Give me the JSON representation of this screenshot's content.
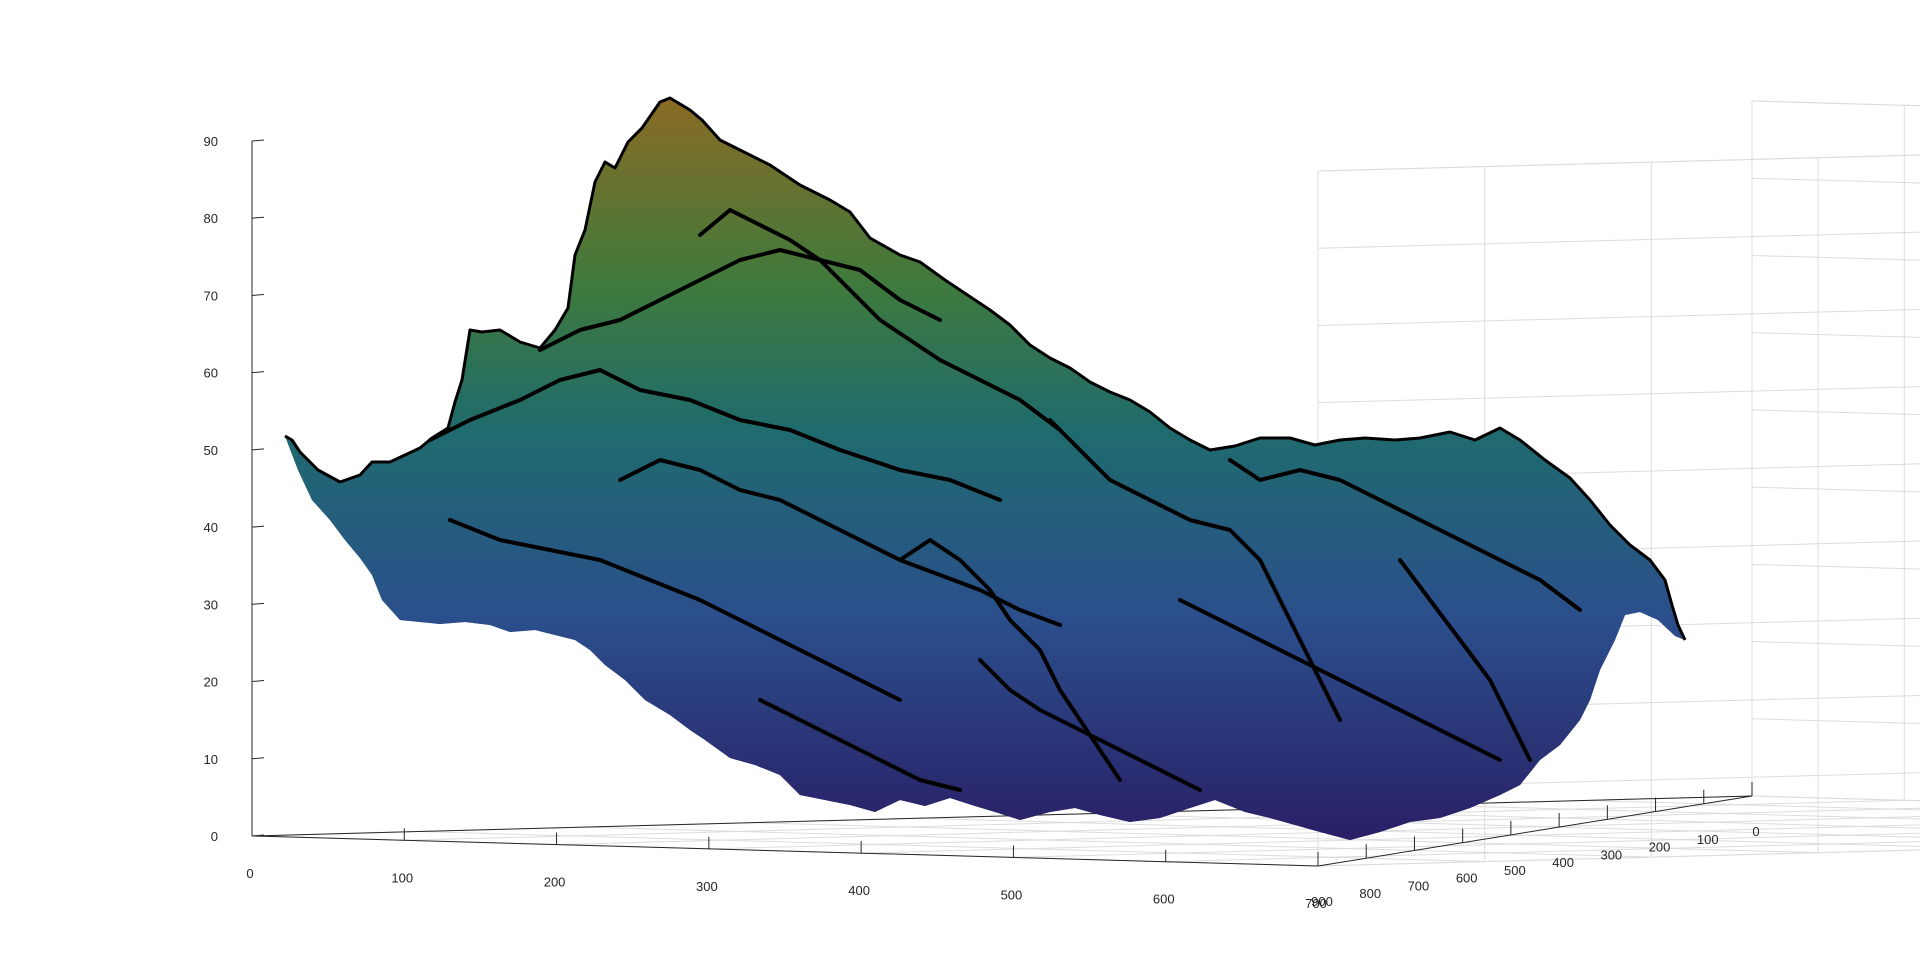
{
  "chart_data": {
    "type": "surface",
    "title": "",
    "xlabel": "",
    "ylabel": "",
    "zlabel": "",
    "grid": true,
    "colormap": "parula-dark",
    "edge_color": "#000000",
    "xlim": [
      0,
      700
    ],
    "ylim": [
      0,
      900
    ],
    "zlim": [
      0,
      90
    ],
    "x_ticks": [
      "0",
      "100",
      "200",
      "300",
      "400",
      "500",
      "600",
      "700"
    ],
    "y_ticks": [
      "0",
      "100",
      "200",
      "300",
      "400",
      "500",
      "600",
      "700",
      "800",
      "900"
    ],
    "z_ticks": [
      "0",
      "10",
      "20",
      "30",
      "40",
      "50",
      "60",
      "70",
      "80",
      "90"
    ],
    "surface_peak_z": 86,
    "surface_min_z": 1,
    "colors": {
      "low": "#2a1f66",
      "mid_low": "#2b4f8c",
      "mid": "#1f6b6e",
      "mid_high": "#3f7a3c",
      "high": "#8a6a24"
    }
  }
}
